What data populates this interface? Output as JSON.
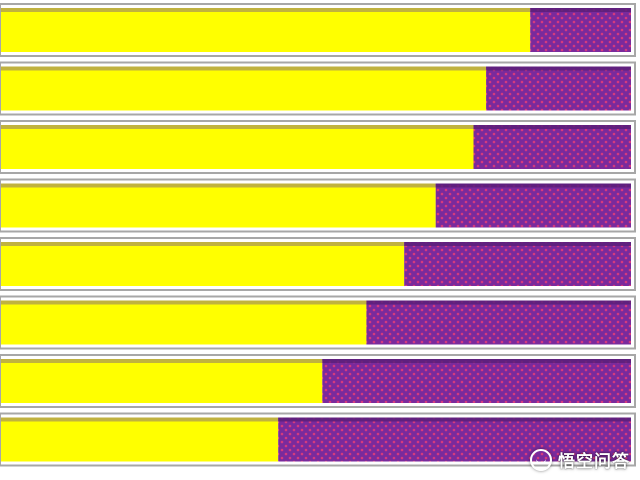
{
  "chart_data": {
    "type": "bar",
    "orientation": "horizontal",
    "stacked": true,
    "categories": [
      "",
      "",
      "",
      "",
      "",
      "",
      "",
      ""
    ],
    "series": [
      {
        "color": "#ffff00",
        "values": [
          84,
          77,
          75,
          69,
          64,
          58,
          51,
          44
        ]
      },
      {
        "color": "#7a2a9c",
        "values": [
          16,
          23,
          25,
          31,
          36,
          42,
          49,
          56
        ]
      }
    ],
    "xlim": [
      0,
      100
    ],
    "grid": false,
    "legend": "none",
    "bar_border_color": "#a7a7a7",
    "bar_shadow_color": "#b5a44a",
    "pattern_dot_color": "#d63a7e"
  },
  "watermark": {
    "text": "悟空问答",
    "icon": "wukong-logo-icon"
  }
}
